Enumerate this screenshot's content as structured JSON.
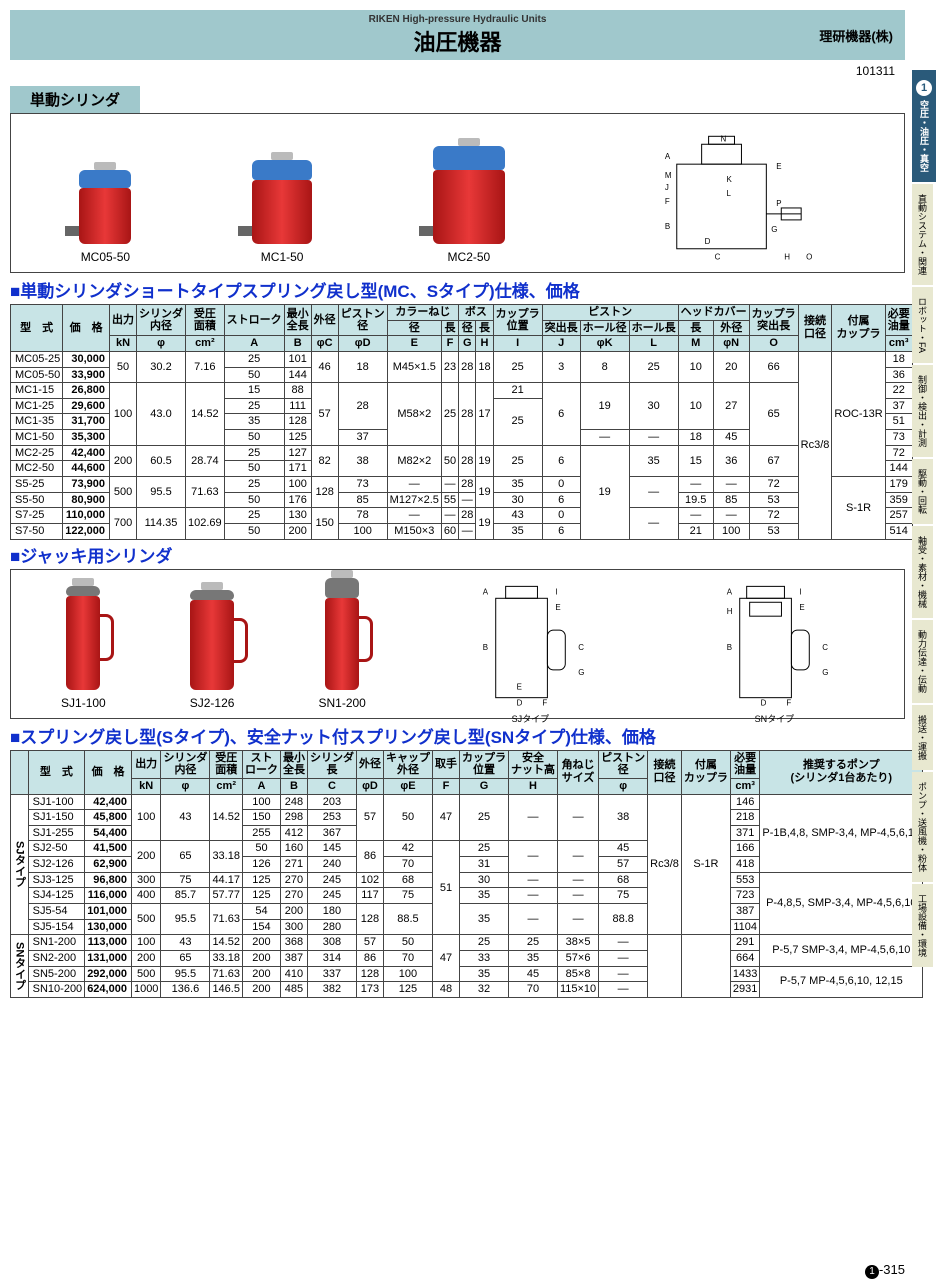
{
  "header": {
    "subtitle": "RIKEN High-pressure Hydraulic Units",
    "title": "油圧機器",
    "manufacturer": "理研機器(株)",
    "code": "101311"
  },
  "sidebar_tabs": [
    {
      "num": "1",
      "label": "空圧・油圧・真空",
      "active": true
    },
    {
      "label": "直動システム・関連"
    },
    {
      "label": "ロボット・FA"
    },
    {
      "label": "制御・検出・計測"
    },
    {
      "label": "駆動・回転"
    },
    {
      "label": "軸受・素材・機械"
    },
    {
      "label": "動力伝達・伝動"
    },
    {
      "label": "搬送・運搬"
    },
    {
      "label": "ポンプ・送風機・粉体"
    },
    {
      "label": "工場設備・環境"
    }
  ],
  "section1": {
    "label": "単動シリンダ",
    "products": [
      "MC05-50",
      "MC1-50",
      "MC2-50"
    ],
    "title": "■単動シリンダショートタイプスプリング戻し型(MC、Sタイプ)仕様、価格",
    "hdr_top": [
      "型　式",
      "価　格",
      "出力",
      "シリンダ内径",
      "受圧面積",
      "ストローク",
      "最小全長",
      "外径",
      "ピストン径",
      "カラーねじ",
      "—",
      "ボス",
      "—",
      "カップラ位置",
      "ピストン",
      "—",
      "—",
      "ヘッドカバー",
      "—",
      "カップラ突出長",
      "接続口径",
      "付属カップラ",
      "必要油量"
    ],
    "hdr_mid": [
      "",
      "",
      "",
      "",
      "",
      "",
      "",
      "",
      "",
      "径",
      "長",
      "径",
      "長",
      "",
      "突出長",
      "ホール径",
      "ホール長",
      "長",
      "外径",
      "",
      "",
      "",
      ""
    ],
    "hdr_unit": [
      "",
      "",
      "kN",
      "φ",
      "cm²",
      "A",
      "B",
      "φC",
      "φD",
      "E",
      "F",
      "G",
      "H",
      "I",
      "J",
      "φK",
      "L",
      "M",
      "φN",
      "O",
      "P",
      "",
      "cm³"
    ],
    "rows": [
      [
        "MC05-25",
        "30,000",
        "50",
        "30.2",
        "7.16",
        "25",
        "101",
        "46",
        "18",
        "M45×1.5",
        "23",
        "28",
        "18",
        "25",
        "3",
        "8",
        "25",
        "10",
        "20",
        "66",
        "Rc3/8",
        "ROC-13R",
        "18"
      ],
      [
        "MC05-50",
        "33,900",
        "",
        "",
        "",
        "50",
        "144",
        "",
        "",
        "",
        "",
        "",
        "",
        "",
        "",
        "",
        "",
        "",
        "",
        "",
        "",
        "",
        "36"
      ],
      [
        "MC1-15",
        "26,800",
        "100",
        "43.0",
        "14.52",
        "15",
        "88",
        "57",
        "28",
        "M58×2",
        "25",
        "28",
        "17",
        "21",
        "6",
        "19",
        "30",
        "10",
        "27",
        "65",
        "",
        "",
        "22"
      ],
      [
        "MC1-25",
        "29,600",
        "",
        "",
        "",
        "25",
        "111",
        "",
        "",
        "",
        "",
        "",
        "",
        "25",
        "",
        "",
        "",
        "",
        "",
        "",
        "",
        "",
        "37"
      ],
      [
        "MC1-35",
        "31,700",
        "",
        "",
        "",
        "35",
        "128",
        "",
        "",
        "",
        "",
        "",
        "",
        "",
        "",
        "",
        "",
        "",
        "",
        "",
        "",
        "",
        "51"
      ],
      [
        "MC1-50",
        "35,300",
        "",
        "",
        "",
        "50",
        "125",
        "",
        "37",
        "",
        "",
        "",
        "",
        "",
        "",
        "—",
        "—",
        "18",
        "45",
        "",
        "",
        "",
        "73"
      ],
      [
        "MC2-25",
        "42,400",
        "200",
        "60.5",
        "28.74",
        "25",
        "127",
        "82",
        "38",
        "M82×2",
        "50",
        "28",
        "19",
        "25",
        "6",
        "19",
        "35",
        "15",
        "36",
        "67",
        "",
        "",
        "72"
      ],
      [
        "MC2-50",
        "44,600",
        "",
        "",
        "",
        "50",
        "171",
        "",
        "",
        "",
        "",
        "",
        "",
        "",
        "",
        "",
        "",
        "",
        "",
        "",
        "",
        "",
        "144"
      ],
      [
        "S5-25",
        "73,900",
        "500",
        "95.5",
        "71.63",
        "25",
        "100",
        "128",
        "73",
        "—",
        "—",
        "28",
        "19",
        "35",
        "0",
        "",
        "—",
        "—",
        "—",
        "72",
        "",
        "S-1R",
        "179"
      ],
      [
        "S5-50",
        "80,900",
        "",
        "",
        "",
        "50",
        "176",
        "",
        "85",
        "M127×2.5",
        "55",
        "—",
        "",
        "30",
        "6",
        "",
        "",
        "19.5",
        "85",
        "53",
        "",
        "",
        "359"
      ],
      [
        "S7-25",
        "110,000",
        "700",
        "114.35",
        "102.69",
        "25",
        "130",
        "150",
        "78",
        "—",
        "—",
        "28",
        "19",
        "43",
        "0",
        "",
        "—",
        "—",
        "—",
        "72",
        "",
        "",
        "257"
      ],
      [
        "S7-50",
        "122,000",
        "",
        "",
        "",
        "50",
        "200",
        "",
        "100",
        "M150×3",
        "60",
        "—",
        "",
        "35",
        "6",
        "",
        "",
        "21",
        "100",
        "53",
        "",
        "",
        "514"
      ]
    ]
  },
  "section2": {
    "title": "■ジャッキ用シリンダ",
    "products": [
      "SJ1-100",
      "SJ2-126",
      "SN1-200",
      "SJタイプ",
      "SNタイプ"
    ]
  },
  "section3": {
    "title": "■スプリング戻し型(Sタイプ)、安全ナット付スプリング戻し型(SNタイプ)仕様、価格",
    "hdr_top": [
      "",
      "型　式",
      "価　格",
      "出力",
      "シリンダ内径",
      "受圧面積",
      "ストローク",
      "最小全長",
      "シリンダ長",
      "外径",
      "キャップ外径",
      "取手",
      "カップラ位置",
      "安全ナット高",
      "角ねじサイズ",
      "ピストン径",
      "接続口径",
      "付属カップラ",
      "必要油量",
      "推奨するポンプ(シリンダ1台あたり)"
    ],
    "hdr_unit": [
      "",
      "",
      "",
      "kN",
      "φ",
      "cm²",
      "A",
      "B",
      "C",
      "φD",
      "φE",
      "F",
      "G",
      "H",
      "",
      "φ",
      "I",
      "",
      "cm³",
      ""
    ],
    "groups": [
      {
        "name": "SJタイプ",
        "rows": [
          [
            "SJ1-100",
            "42,400",
            "100",
            "43",
            "14.52",
            "100",
            "248",
            "203",
            "57",
            "50",
            "47",
            "25",
            "—",
            "—",
            "38",
            "Rc3/8",
            "S-1R",
            "146",
            "P-1B,4,8, SMP-3,4, MP-4,5,6,10"
          ],
          [
            "SJ1-150",
            "45,800",
            "",
            "",
            "",
            "150",
            "298",
            "253",
            "",
            "",
            "",
            "",
            "",
            "",
            "",
            "",
            "",
            "218",
            ""
          ],
          [
            "SJ1-255",
            "54,400",
            "",
            "",
            "",
            "255",
            "412",
            "367",
            "",
            "",
            "",
            "",
            "",
            "",
            "",
            "",
            "",
            "371",
            ""
          ],
          [
            "SJ2-50",
            "41,500",
            "200",
            "65",
            "33.18",
            "50",
            "160",
            "145",
            "86",
            "42",
            "51",
            "25",
            "—",
            "—",
            "45",
            "",
            "",
            "166",
            ""
          ],
          [
            "SJ2-126",
            "62,900",
            "",
            "",
            "",
            "126",
            "271",
            "240",
            "",
            "70",
            "",
            "31",
            "",
            "",
            "57",
            "",
            "",
            "418",
            ""
          ],
          [
            "SJ3-125",
            "96,800",
            "300",
            "75",
            "44.17",
            "125",
            "270",
            "245",
            "102",
            "68",
            "",
            "30",
            "—",
            "—",
            "68",
            "",
            "",
            "553",
            "P-4,8,5, SMP-3,4, MP-4,5,6,10"
          ],
          [
            "SJ4-125",
            "116,000",
            "400",
            "85.7",
            "57.77",
            "125",
            "270",
            "245",
            "117",
            "75",
            "",
            "35",
            "—",
            "—",
            "75",
            "",
            "",
            "723",
            ""
          ],
          [
            "SJ5-54",
            "101,000",
            "500",
            "95.5",
            "71.63",
            "54",
            "200",
            "180",
            "128",
            "88.5",
            "",
            "35",
            "—",
            "—",
            "88.8",
            "",
            "",
            "387",
            ""
          ],
          [
            "SJ5-154",
            "130,000",
            "",
            "",
            "",
            "154",
            "300",
            "280",
            "",
            "",
            "",
            "",
            "",
            "",
            "",
            "",
            "",
            "1104",
            ""
          ]
        ]
      },
      {
        "name": "SNタイプ",
        "rows": [
          [
            "SN1-200",
            "113,000",
            "100",
            "43",
            "14.52",
            "200",
            "368",
            "308",
            "57",
            "50",
            "47",
            "25",
            "25",
            "38×5",
            "—",
            "",
            "",
            "291",
            "P-5,7 SMP-3,4, MP-4,5,6,10"
          ],
          [
            "SN2-200",
            "131,000",
            "200",
            "65",
            "33.18",
            "200",
            "387",
            "314",
            "86",
            "70",
            "",
            "33",
            "35",
            "57×6",
            "—",
            "",
            "",
            "664",
            ""
          ],
          [
            "SN5-200",
            "292,000",
            "500",
            "95.5",
            "71.63",
            "200",
            "410",
            "337",
            "128",
            "100",
            "",
            "35",
            "45",
            "85×8",
            "—",
            "",
            "",
            "1433",
            "P-5,7 MP-4,5,6,10, 12,15"
          ],
          [
            "SN10-200",
            "624,000",
            "1000",
            "136.6",
            "146.5",
            "200",
            "485",
            "382",
            "173",
            "125",
            "48",
            "32",
            "70",
            "115×10",
            "—",
            "",
            "",
            "2931",
            ""
          ]
        ]
      }
    ]
  },
  "page_num": {
    "circle": "1",
    "num": "-315"
  },
  "colors": {
    "hdr": "#a0c8cc",
    "th": "#c8e4e6",
    "accent": "#1030cc",
    "tab_active": "#2a5a7a"
  }
}
